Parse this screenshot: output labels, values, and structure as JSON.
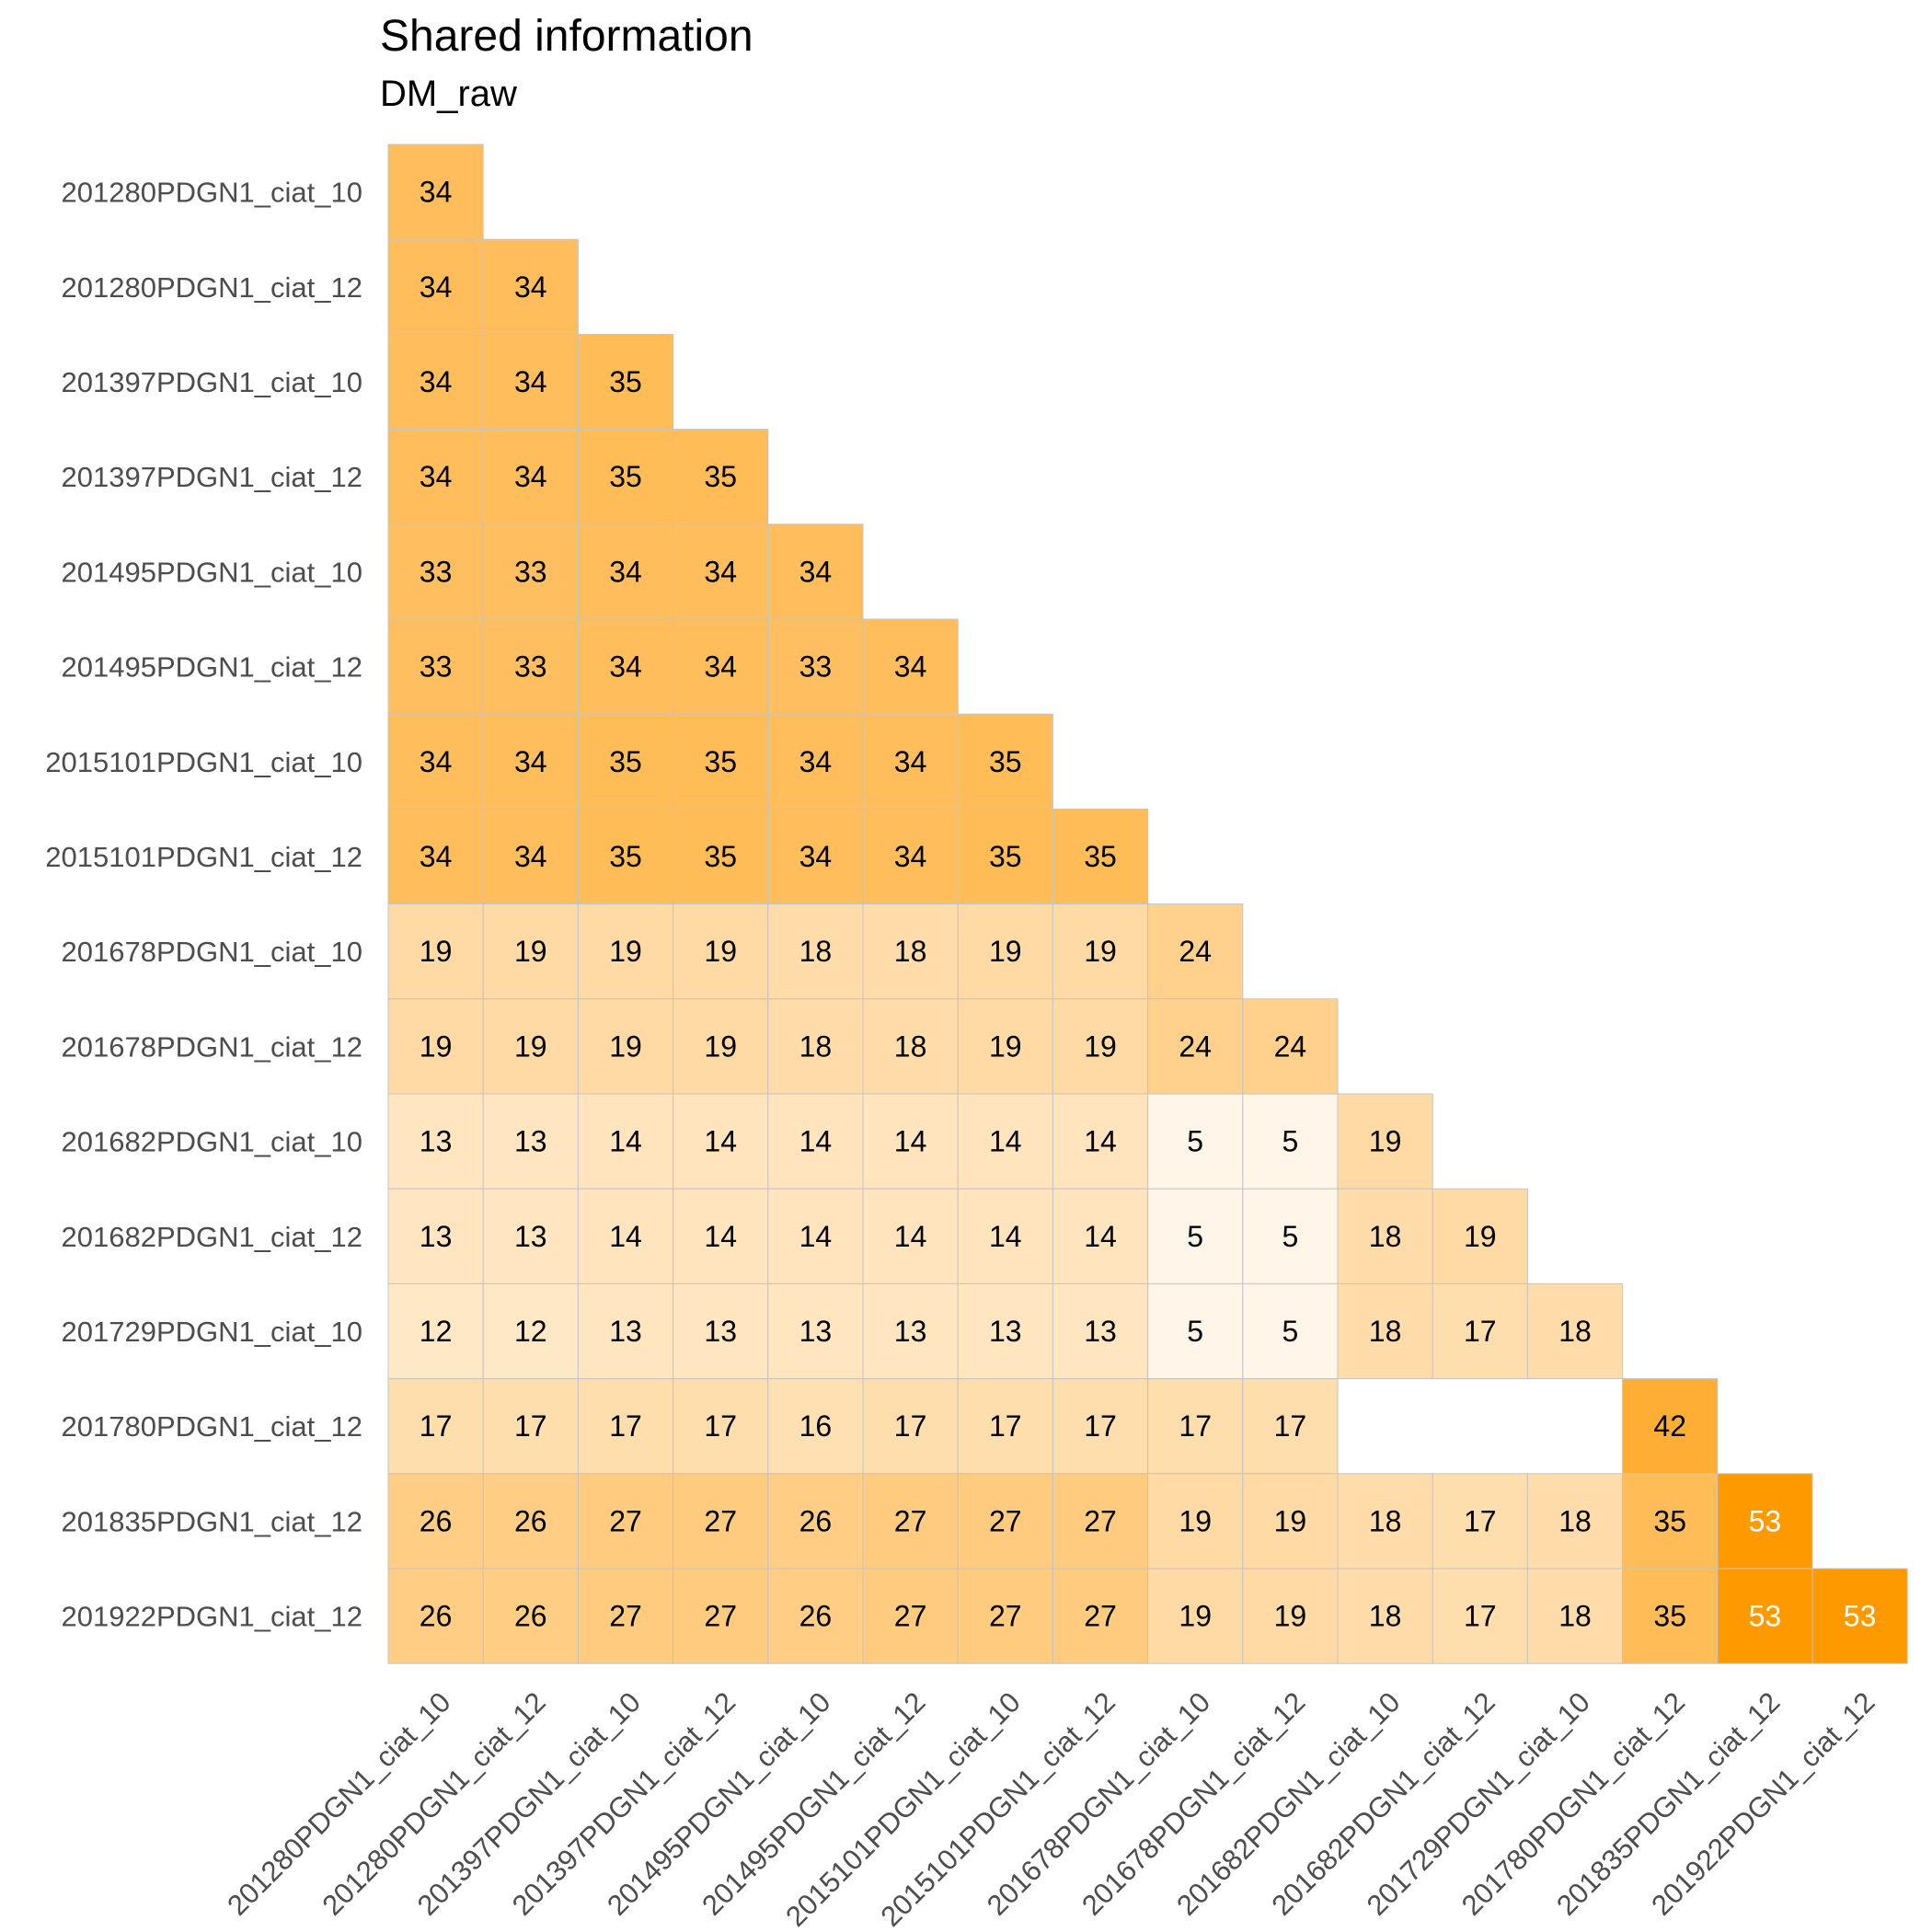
{
  "chart_data": {
    "type": "heatmap",
    "title": "Shared information",
    "subtitle": "DM_raw",
    "legend": "none",
    "grid": false,
    "labels": [
      "201280PDGN1_ciat_10",
      "201280PDGN1_ciat_12",
      "201397PDGN1_ciat_10",
      "201397PDGN1_ciat_12",
      "201495PDGN1_ciat_10",
      "201495PDGN1_ciat_12",
      "2015101PDGN1_ciat_10",
      "2015101PDGN1_ciat_12",
      "201678PDGN1_ciat_10",
      "201678PDGN1_ciat_12",
      "201682PDGN1_ciat_10",
      "201682PDGN1_ciat_12",
      "201729PDGN1_ciat_10",
      "201780PDGN1_ciat_12",
      "201835PDGN1_ciat_12",
      "201922PDGN1_ciat_12"
    ],
    "values": [
      [
        34
      ],
      [
        34,
        34
      ],
      [
        34,
        34,
        35
      ],
      [
        34,
        34,
        35,
        35
      ],
      [
        33,
        33,
        34,
        34,
        34
      ],
      [
        33,
        33,
        34,
        34,
        33,
        34
      ],
      [
        34,
        34,
        35,
        35,
        34,
        34,
        35
      ],
      [
        34,
        34,
        35,
        35,
        34,
        34,
        35,
        35
      ],
      [
        19,
        19,
        19,
        19,
        18,
        18,
        19,
        19,
        24
      ],
      [
        19,
        19,
        19,
        19,
        18,
        18,
        19,
        19,
        24,
        24
      ],
      [
        13,
        13,
        14,
        14,
        14,
        14,
        14,
        14,
        5,
        5,
        19
      ],
      [
        13,
        13,
        14,
        14,
        14,
        14,
        14,
        14,
        5,
        5,
        18,
        19
      ],
      [
        12,
        12,
        13,
        13,
        13,
        13,
        13,
        13,
        5,
        5,
        18,
        17,
        18
      ],
      [
        17,
        17,
        17,
        17,
        16,
        17,
        17,
        17,
        17,
        17,
        null,
        null,
        null,
        42
      ],
      [
        26,
        26,
        27,
        27,
        26,
        27,
        27,
        27,
        19,
        19,
        18,
        17,
        18,
        35,
        53
      ],
      [
        26,
        26,
        27,
        27,
        26,
        27,
        27,
        27,
        19,
        19,
        18,
        17,
        18,
        35,
        53,
        53
      ]
    ],
    "color_scale": {
      "low": "#fff5e8",
      "high": "#ff9900",
      "min": 5,
      "max": 53
    },
    "border_color": "#c4c4c4"
  }
}
